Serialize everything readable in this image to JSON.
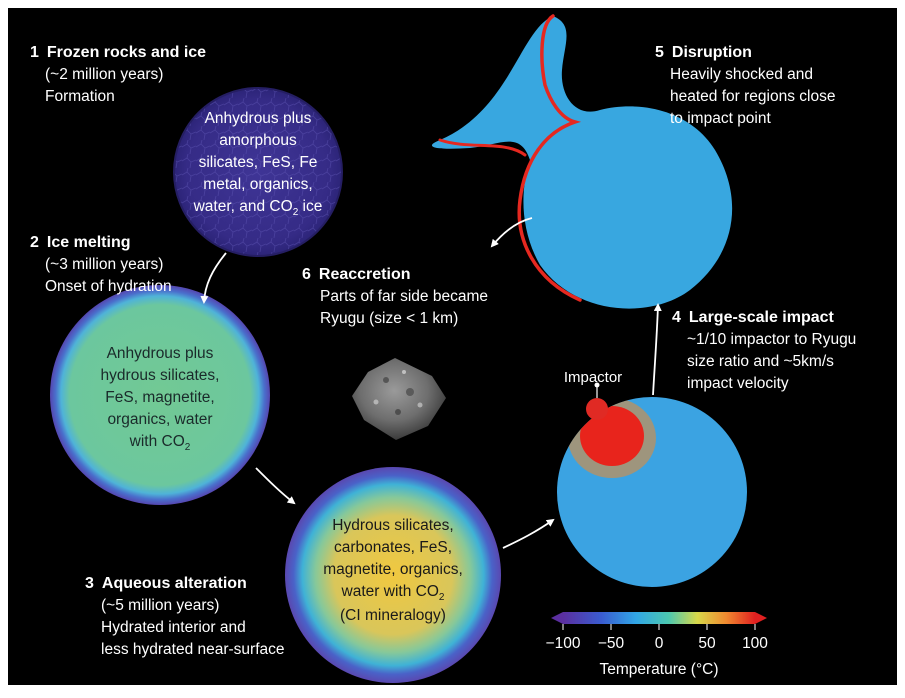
{
  "steps": [
    {
      "number": "1",
      "title": "Frozen rocks and ice",
      "lines": [
        "(~2 million years)",
        "Formation"
      ],
      "composition": [
        "Anhydrous plus",
        "amorphous",
        "silicates, FeS, Fe",
        "metal, organics,"
      ],
      "composition_last": "water, and CO",
      "composition_last_sub": "2",
      "composition_last_tail": " ice"
    },
    {
      "number": "2",
      "title": "Ice melting",
      "lines": [
        "(~3 million years)",
        "Onset of hydration"
      ],
      "composition": [
        "Anhydrous plus",
        "hydrous silicates,",
        "FeS, magnetite,",
        "organics, water"
      ],
      "composition_last": "with CO",
      "composition_last_sub": "2",
      "composition_last_tail": ""
    },
    {
      "number": "3",
      "title": "Aqueous alteration",
      "lines": [
        "(~5 million years)",
        "Hydrated interior and",
        "less hydrated near-surface"
      ],
      "composition": [
        "Hydrous silicates,",
        "carbonates, FeS,",
        "magnetite, organics,"
      ],
      "composition_last": "water with CO",
      "composition_last_sub": "2",
      "composition_last_tail": "",
      "composition_after": "(CI mineralogy)"
    },
    {
      "number": "4",
      "title": "Large-scale impact",
      "lines": [
        "~1/10 impactor to Ryugu",
        "size ratio and ~5km/s",
        "impact velocity"
      ]
    },
    {
      "number": "5",
      "title": "Disruption",
      "lines": [
        "Heavily shocked and",
        "heated for regions close",
        "to impact point"
      ]
    },
    {
      "number": "6",
      "title": "Reaccretion",
      "lines": [
        "Parts of far side became",
        "Ryugu (size < 1 km)"
      ]
    }
  ],
  "impactor_label": "Impactor",
  "colorbar": {
    "ticks": [
      "−100",
      "−50",
      "0",
      "50",
      "100"
    ],
    "label": "Temperature (°C)"
  },
  "colors": {
    "background": "#000000",
    "stage1": "#3a2f8c",
    "stage2_fill": "#6ec89a",
    "stage2_rim": "#5a4fb8",
    "stage3_fill": "#e8c24a",
    "stage3_rim": "#5a4fb8",
    "cold": "#3aa2e0",
    "hot": "#e02020"
  }
}
